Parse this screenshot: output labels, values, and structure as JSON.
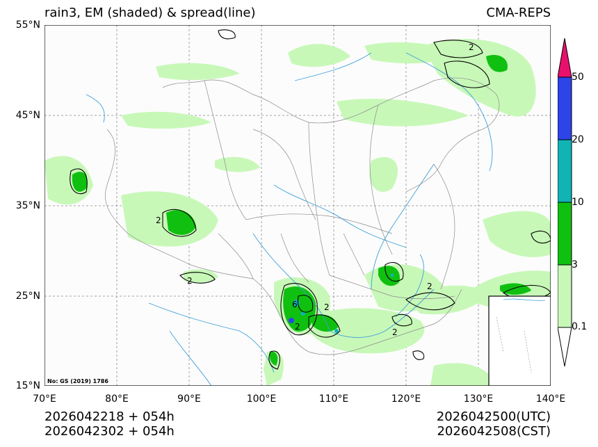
{
  "title": {
    "left": "rain3, EM (shaded) & spread(line)",
    "right": "CMA-REPS"
  },
  "lat_ticks": [
    "55°N",
    "45°N",
    "35°N",
    "25°N",
    "15°N"
  ],
  "lon_ticks": [
    "70°E",
    "80°E",
    "90°E",
    "100°E",
    "110°E",
    "120°E",
    "130°E",
    "140°E"
  ],
  "map_extent": {
    "lon": [
      70,
      140
    ],
    "lat": [
      15,
      55
    ]
  },
  "colorbar": {
    "labels": [
      "0.1",
      "3",
      "10",
      "20",
      "50"
    ],
    "colors": [
      "#ffffff",
      "#c8f8b8",
      "#10c010",
      "#10b4b4",
      "#2c44e8",
      "#e8106c"
    ]
  },
  "bottom": {
    "init_utc": "2026042218  +  054h",
    "init_cst": "2026042302  +  054h",
    "valid_utc": "2026042500(UTC)",
    "valid_cst": "2026042508(CST)"
  },
  "map_note": "No: GS (2019) 1786",
  "contour_labels": [
    "2",
    "2",
    "2",
    "2",
    "2",
    "2",
    "2",
    "6"
  ]
}
